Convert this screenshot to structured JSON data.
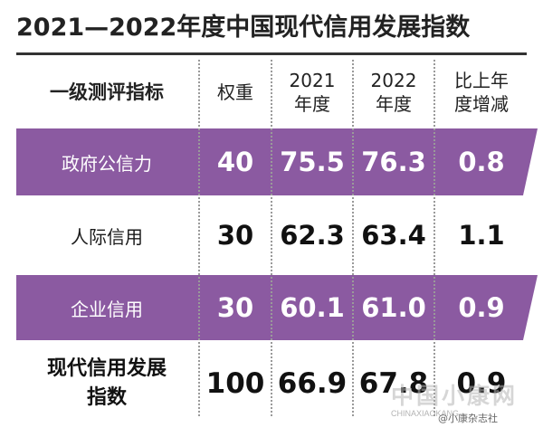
{
  "title": "2021—2022年度中国现代信用发展指数",
  "header": {
    "col1": "一级测评指标",
    "col2": "权重",
    "col3_line1": "2021",
    "col3_line2": "年度",
    "col4_line1": "2022",
    "col4_line2": "年度",
    "col5_line1": "比上年",
    "col5_line2": "度增减"
  },
  "rows": [
    {
      "name": "政府公信力",
      "weight": "40",
      "y2021": "75.5",
      "y2022": "76.3",
      "change": "0.8"
    },
    {
      "name": "人际信用",
      "weight": "30",
      "y2021": "62.3",
      "y2022": "63.4",
      "change": "1.1"
    },
    {
      "name": "企业信用",
      "weight": "30",
      "y2021": "60.1",
      "y2022": "61.0",
      "change": "0.9"
    }
  ],
  "total": {
    "name_line1": "现代信用发展",
    "name_line2": "指数",
    "weight": "100",
    "y2021": "66.9",
    "y2022": "67.8",
    "change": "0.9"
  },
  "watermark": {
    "main": "中国小康网",
    "sub": "CHINAXIAOKANG",
    "credit": "@小康杂志社"
  },
  "colors": {
    "band": "#8b5aa1"
  }
}
